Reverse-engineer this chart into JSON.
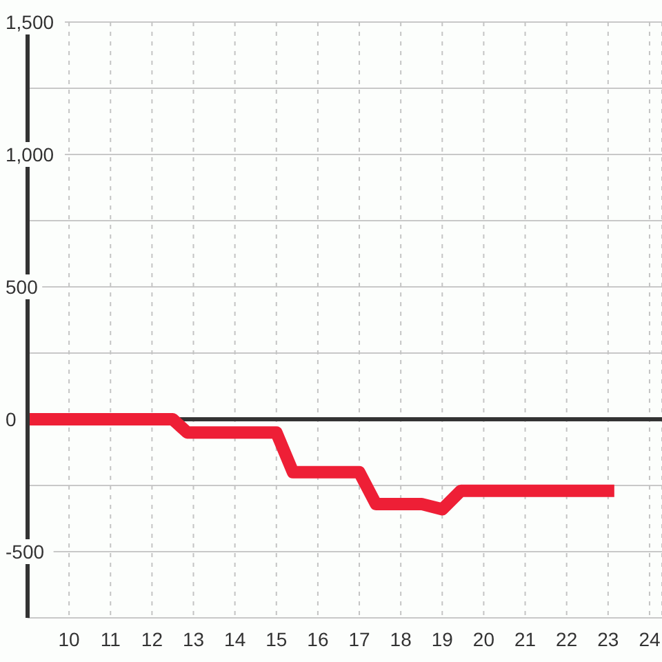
{
  "chart_data": {
    "type": "line",
    "x": [
      9,
      12.5,
      12.85,
      15,
      15.4,
      17,
      17.4,
      18.5,
      19,
      19.45,
      23
    ],
    "series": [
      {
        "color": "#ee1f36",
        "values": [
          0,
          0,
          -50,
          -50,
          -200,
          -200,
          -320,
          -320,
          -340,
          -270,
          -270
        ]
      }
    ],
    "xlim": [
      9,
      24.3
    ],
    "xticks": [
      10,
      11,
      12,
      13,
      14,
      15,
      16,
      17,
      18,
      19,
      20,
      21,
      22,
      23,
      24
    ],
    "ylim": [
      -750,
      1500
    ],
    "yticks": [
      {
        "value": -750,
        "label": null
      },
      -500,
      {
        "value": -250,
        "label": null
      },
      0,
      {
        "value": 250,
        "label": null
      },
      500,
      {
        "value": 750,
        "label": null
      },
      {
        "value": 1000,
        "label": "1,000"
      },
      {
        "value": 1250,
        "label": null
      },
      {
        "value": 1500,
        "label": "1,500"
      }
    ],
    "grid": true,
    "ref_lines": [
      {
        "axis": "y",
        "value": 0,
        "color": "#333333"
      }
    ]
  }
}
